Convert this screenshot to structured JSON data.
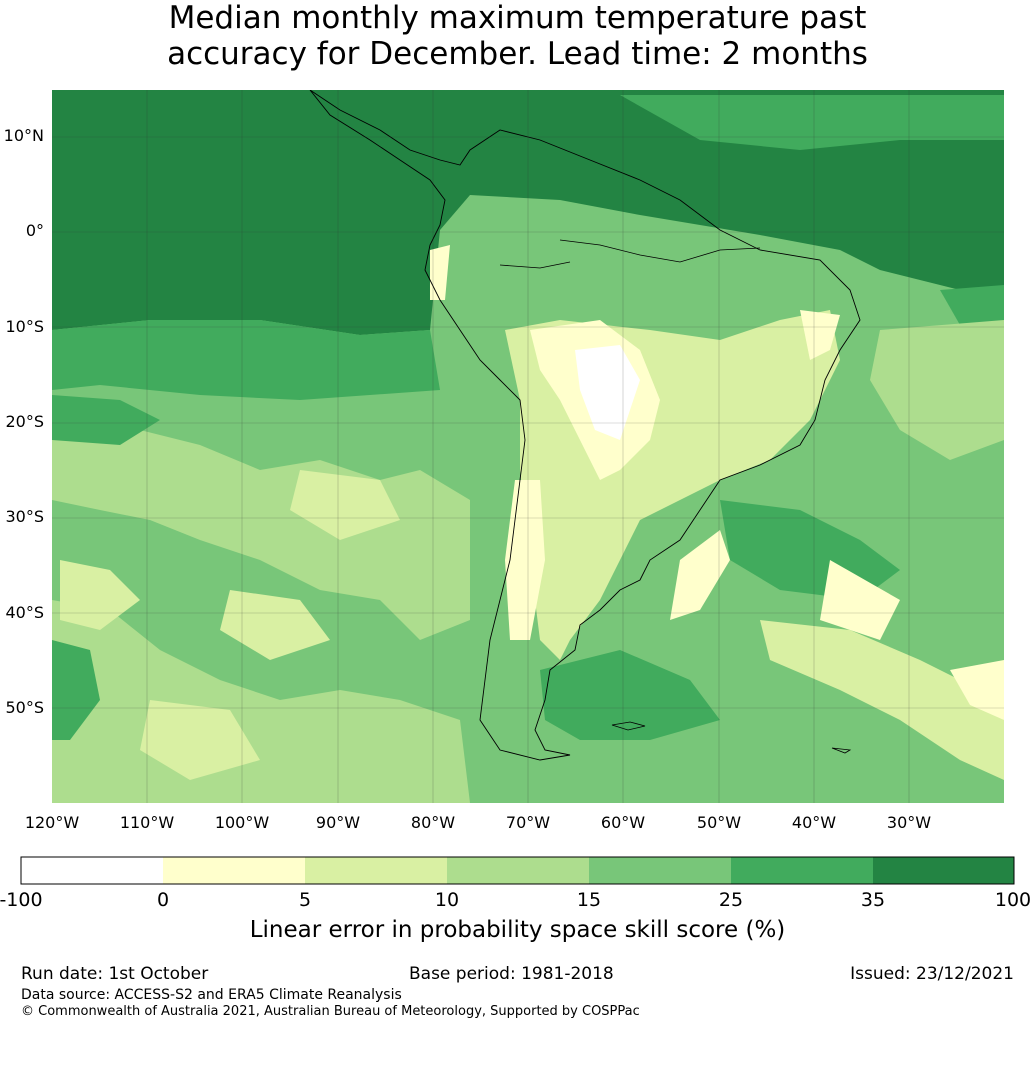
{
  "title": {
    "line1": "Median monthly maximum temperature past",
    "line2": "accuracy for December. Lead time: 2 months"
  },
  "map": {
    "lon_ticks": [
      "120°W",
      "110°W",
      "100°W",
      "90°W",
      "80°W",
      "70°W",
      "60°W",
      "50°W",
      "40°W",
      "30°W"
    ],
    "lat_ticks": [
      "10°N",
      "0°",
      "10°S",
      "20°S",
      "30°S",
      "40°S",
      "50°S"
    ],
    "colors": {
      "c1": "#ffffff",
      "c2": "#ffffcc",
      "c3": "#d9f0a3",
      "c4": "#addd8e",
      "c5": "#78c679",
      "c6": "#41ab5d",
      "c7": "#238443"
    }
  },
  "colorbar": {
    "ticks": [
      "-100",
      "0",
      "5",
      "10",
      "15",
      "25",
      "35",
      "100"
    ],
    "colors": [
      "#ffffff",
      "#ffffcc",
      "#d9f0a3",
      "#addd8e",
      "#78c679",
      "#41ab5d",
      "#238443"
    ],
    "label": "Linear error in probability space skill score (%)"
  },
  "footer": {
    "run_date": "Run date: 1st October",
    "base_period": "Base period: 1981-2018",
    "issued": "Issued: 23/12/2021",
    "data_source": "Data source: ACCESS-S2 and ERA5 Climate Reanalysis",
    "copyright": "© Commonwealth of Australia 2021, Australian Bureau of Meteorology, Supported by COSPPac"
  }
}
